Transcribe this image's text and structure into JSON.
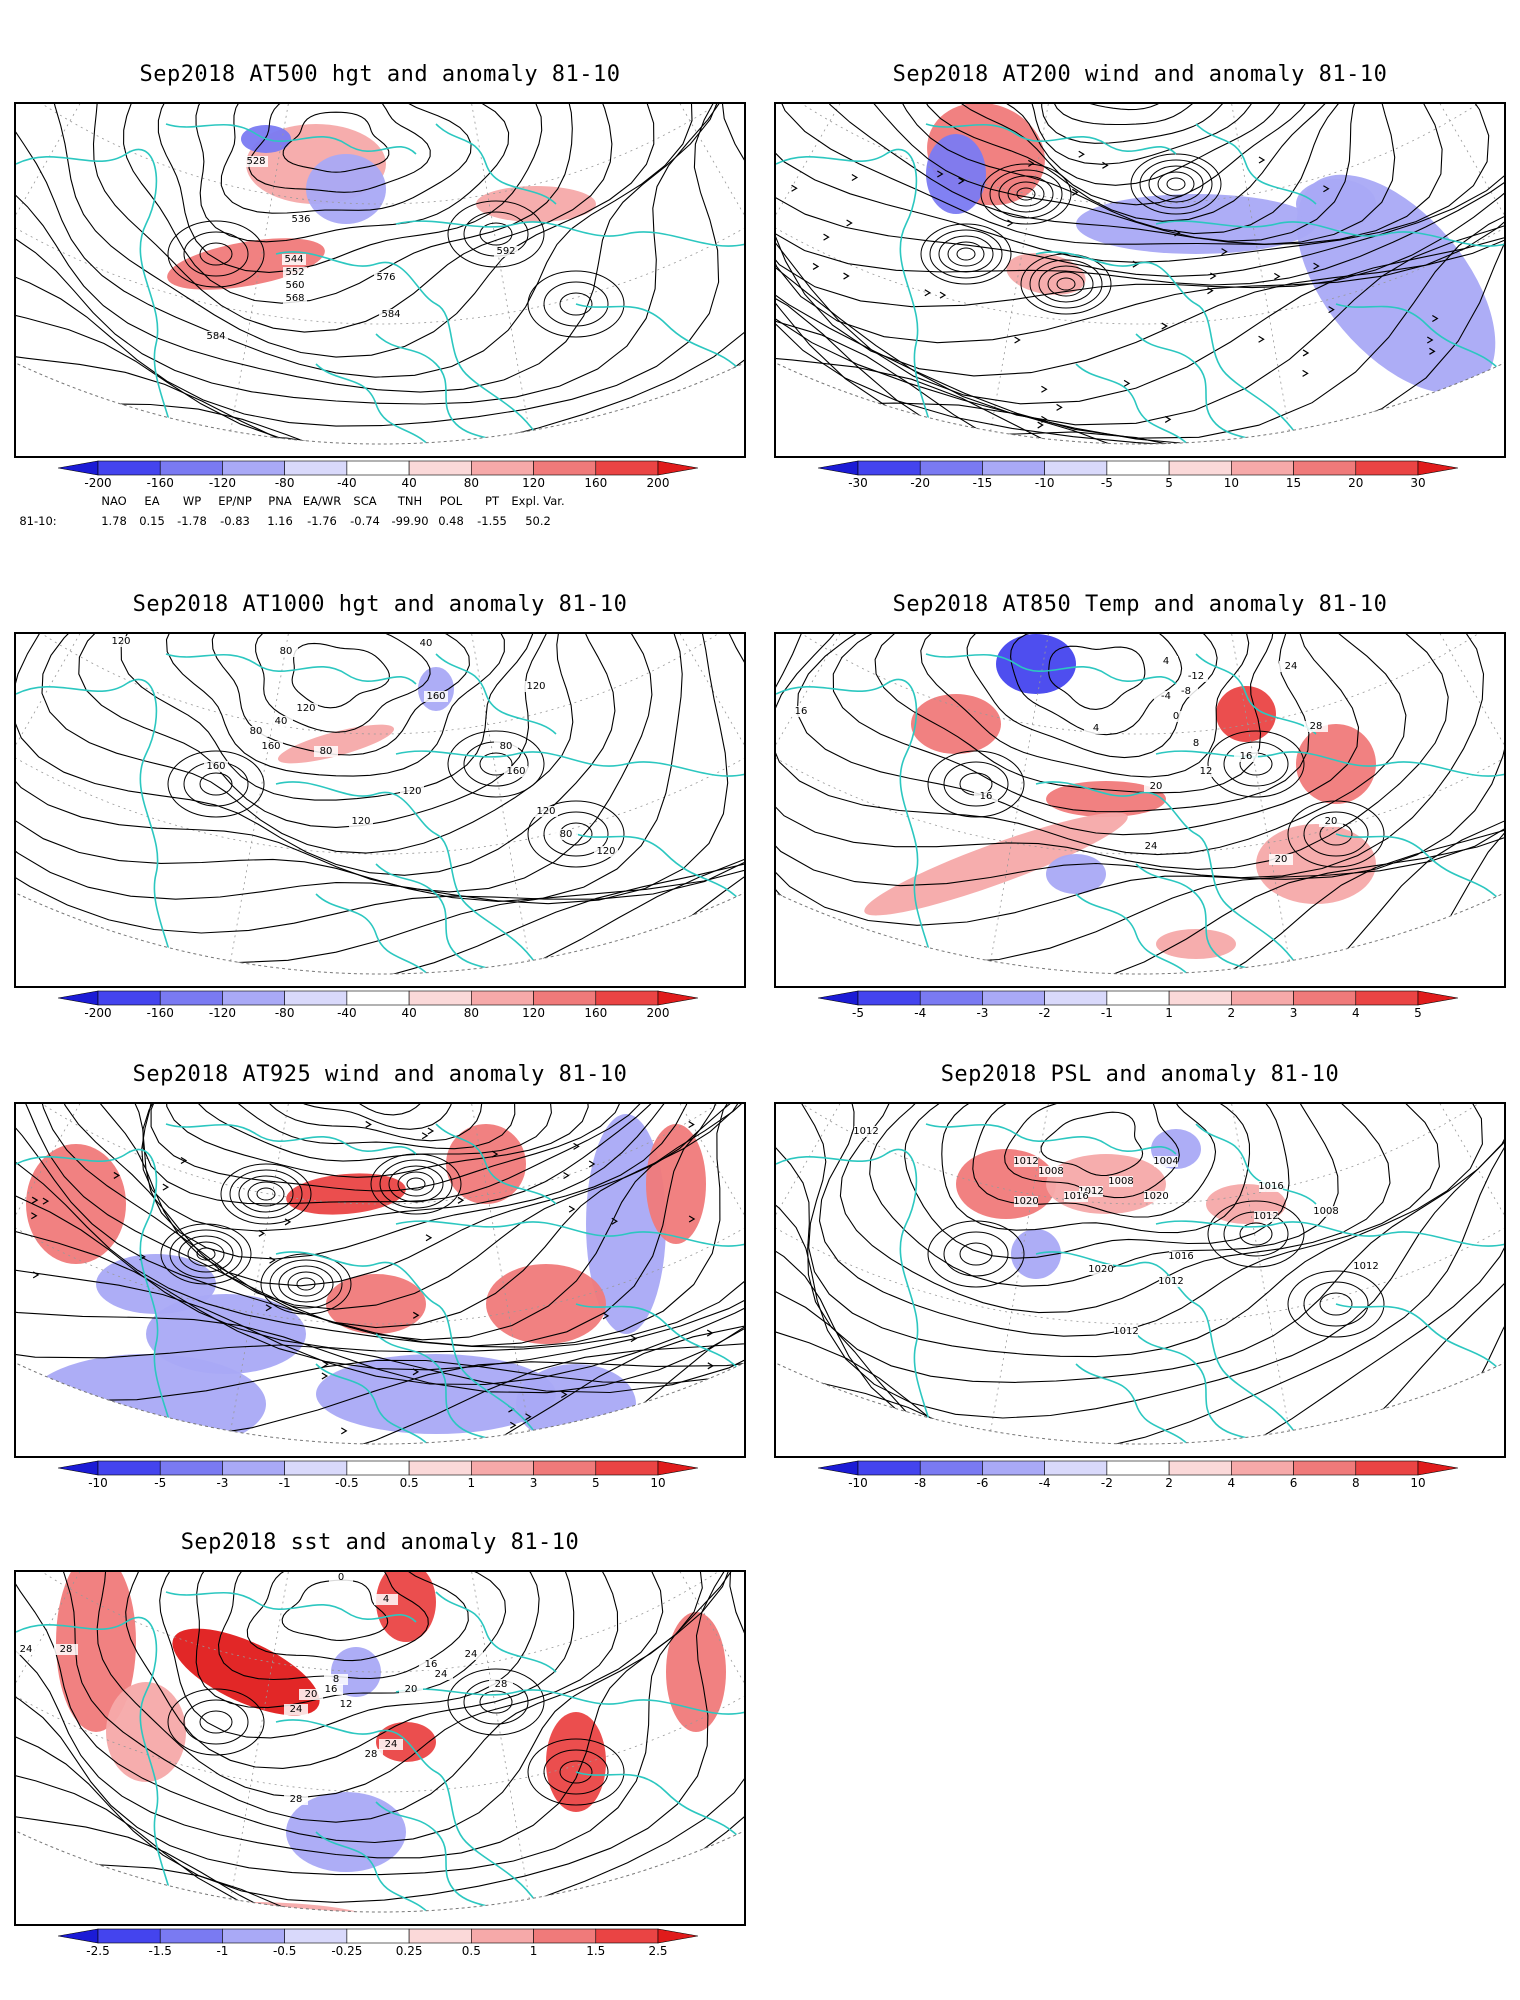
{
  "panels": [
    {
      "id": "at500",
      "title": "Sep2018 AT500 hgt and anomaly 81-10",
      "contour_labels": [
        "528",
        "536",
        "544",
        "552",
        "560",
        "568",
        "576",
        "584",
        "584",
        "592"
      ],
      "colorbar": {
        "labels": [
          "-200",
          "-160",
          "-120",
          "-80",
          "-40",
          "40",
          "80",
          "120",
          "160",
          "200"
        ],
        "colors": [
          "#1b1bd6",
          "#4444ee",
          "#7a7af2",
          "#a9a9f6",
          "#d9d9fb",
          "#ffffff",
          "#fbd9d9",
          "#f6a9a9",
          "#f07a7a",
          "#ea4444",
          "#e01b1b"
        ]
      }
    },
    {
      "id": "at200",
      "title": "Sep2018 AT200 wind and anomaly 81-10",
      "contour_labels": [],
      "colorbar": {
        "labels": [
          "-30",
          "-20",
          "-15",
          "-10",
          "-5",
          "5",
          "10",
          "15",
          "20",
          "30"
        ],
        "colors": [
          "#1b1bd6",
          "#4444ee",
          "#7a7af2",
          "#a9a9f6",
          "#d9d9fb",
          "#ffffff",
          "#fbd9d9",
          "#f6a9a9",
          "#f07a7a",
          "#ea4444",
          "#e01b1b"
        ]
      }
    },
    {
      "id": "at1000",
      "title": "Sep2018 AT1000 hgt and anomaly 81-10",
      "contour_labels": [
        "120",
        "80",
        "40",
        "120",
        "160",
        "40",
        "80",
        "120",
        "160",
        "160",
        "80",
        "120",
        "80",
        "80",
        "120",
        "120",
        "120",
        "160"
      ],
      "colorbar": {
        "labels": [
          "-200",
          "-160",
          "-120",
          "-80",
          "-40",
          "40",
          "80",
          "120",
          "160",
          "200"
        ],
        "colors": [
          "#1b1bd6",
          "#4444ee",
          "#7a7af2",
          "#a9a9f6",
          "#d9d9fb",
          "#ffffff",
          "#fbd9d9",
          "#f6a9a9",
          "#f07a7a",
          "#ea4444",
          "#e01b1b"
        ]
      }
    },
    {
      "id": "at850",
      "title": "Sep2018 AT850 Temp and anomaly 81-10",
      "contour_labels": [
        "16",
        "4",
        "-12",
        "-8",
        "-4",
        "0",
        "4",
        "8",
        "24",
        "28",
        "20",
        "16",
        "12",
        "20",
        "16",
        "24",
        "20"
      ],
      "colorbar": {
        "labels": [
          "-5",
          "-4",
          "-3",
          "-2",
          "-1",
          "1",
          "2",
          "3",
          "4",
          "5"
        ],
        "colors": [
          "#1b1bd6",
          "#4444ee",
          "#7a7af2",
          "#a9a9f6",
          "#d9d9fb",
          "#ffffff",
          "#fbd9d9",
          "#f6a9a9",
          "#f07a7a",
          "#ea4444",
          "#e01b1b"
        ]
      }
    },
    {
      "id": "at925",
      "title": "Sep2018 AT925 wind and anomaly 81-10",
      "contour_labels": [],
      "colorbar": {
        "labels": [
          "-10",
          "-5",
          "-3",
          "-1",
          "-0.5",
          "0.5",
          "1",
          "3",
          "5",
          "10"
        ],
        "colors": [
          "#1b1bd6",
          "#4444ee",
          "#7a7af2",
          "#a9a9f6",
          "#d9d9fb",
          "#ffffff",
          "#fbd9d9",
          "#f6a9a9",
          "#f07a7a",
          "#ea4444",
          "#e01b1b"
        ]
      }
    },
    {
      "id": "psl",
      "title": "Sep2018 PSL and anomaly 81-10",
      "contour_labels": [
        "1012",
        "1012",
        "1008",
        "1004",
        "1008",
        "1012",
        "1016",
        "1020",
        "1020",
        "1016",
        "1012",
        "1008",
        "1016",
        "1020",
        "1012",
        "1012",
        "1012"
      ],
      "colorbar": {
        "labels": [
          "-10",
          "-8",
          "-6",
          "-4",
          "-2",
          "2",
          "4",
          "6",
          "8",
          "10"
        ],
        "colors": [
          "#1b1bd6",
          "#4444ee",
          "#7a7af2",
          "#a9a9f6",
          "#d9d9fb",
          "#ffffff",
          "#fbd9d9",
          "#f6a9a9",
          "#f07a7a",
          "#ea4444",
          "#e01b1b"
        ]
      }
    },
    {
      "id": "sst",
      "title": "Sep2018 sst and anomaly 81-10",
      "contour_labels": [
        "24",
        "28",
        "0",
        "4",
        "8",
        "12",
        "16",
        "20",
        "24",
        "16",
        "20",
        "24",
        "28",
        "24",
        "24",
        "28",
        "28"
      ],
      "colorbar": {
        "labels": [
          "-2.5",
          "-1.5",
          "-1",
          "-0.5",
          "-0.25",
          "0.25",
          "0.5",
          "1",
          "1.5",
          "2.5"
        ],
        "colors": [
          "#1b1bd6",
          "#4444ee",
          "#7a7af2",
          "#a9a9f6",
          "#d9d9fb",
          "#ffffff",
          "#fbd9d9",
          "#f6a9a9",
          "#f07a7a",
          "#ea4444",
          "#e01b1b"
        ]
      }
    }
  ],
  "teleconnections": {
    "row_label": "81-10:",
    "indices": [
      "NAO",
      "EA",
      "WP",
      "EP/NP",
      "PNA",
      "EA/WR",
      "SCA",
      "TNH",
      "POL",
      "PT",
      "Expl. Var."
    ],
    "values": [
      "1.78",
      "0.15",
      "-1.78",
      "-0.83",
      "1.16",
      "-1.76",
      "-0.74",
      "-99.90",
      "0.48",
      "-1.55",
      "50.2"
    ]
  }
}
